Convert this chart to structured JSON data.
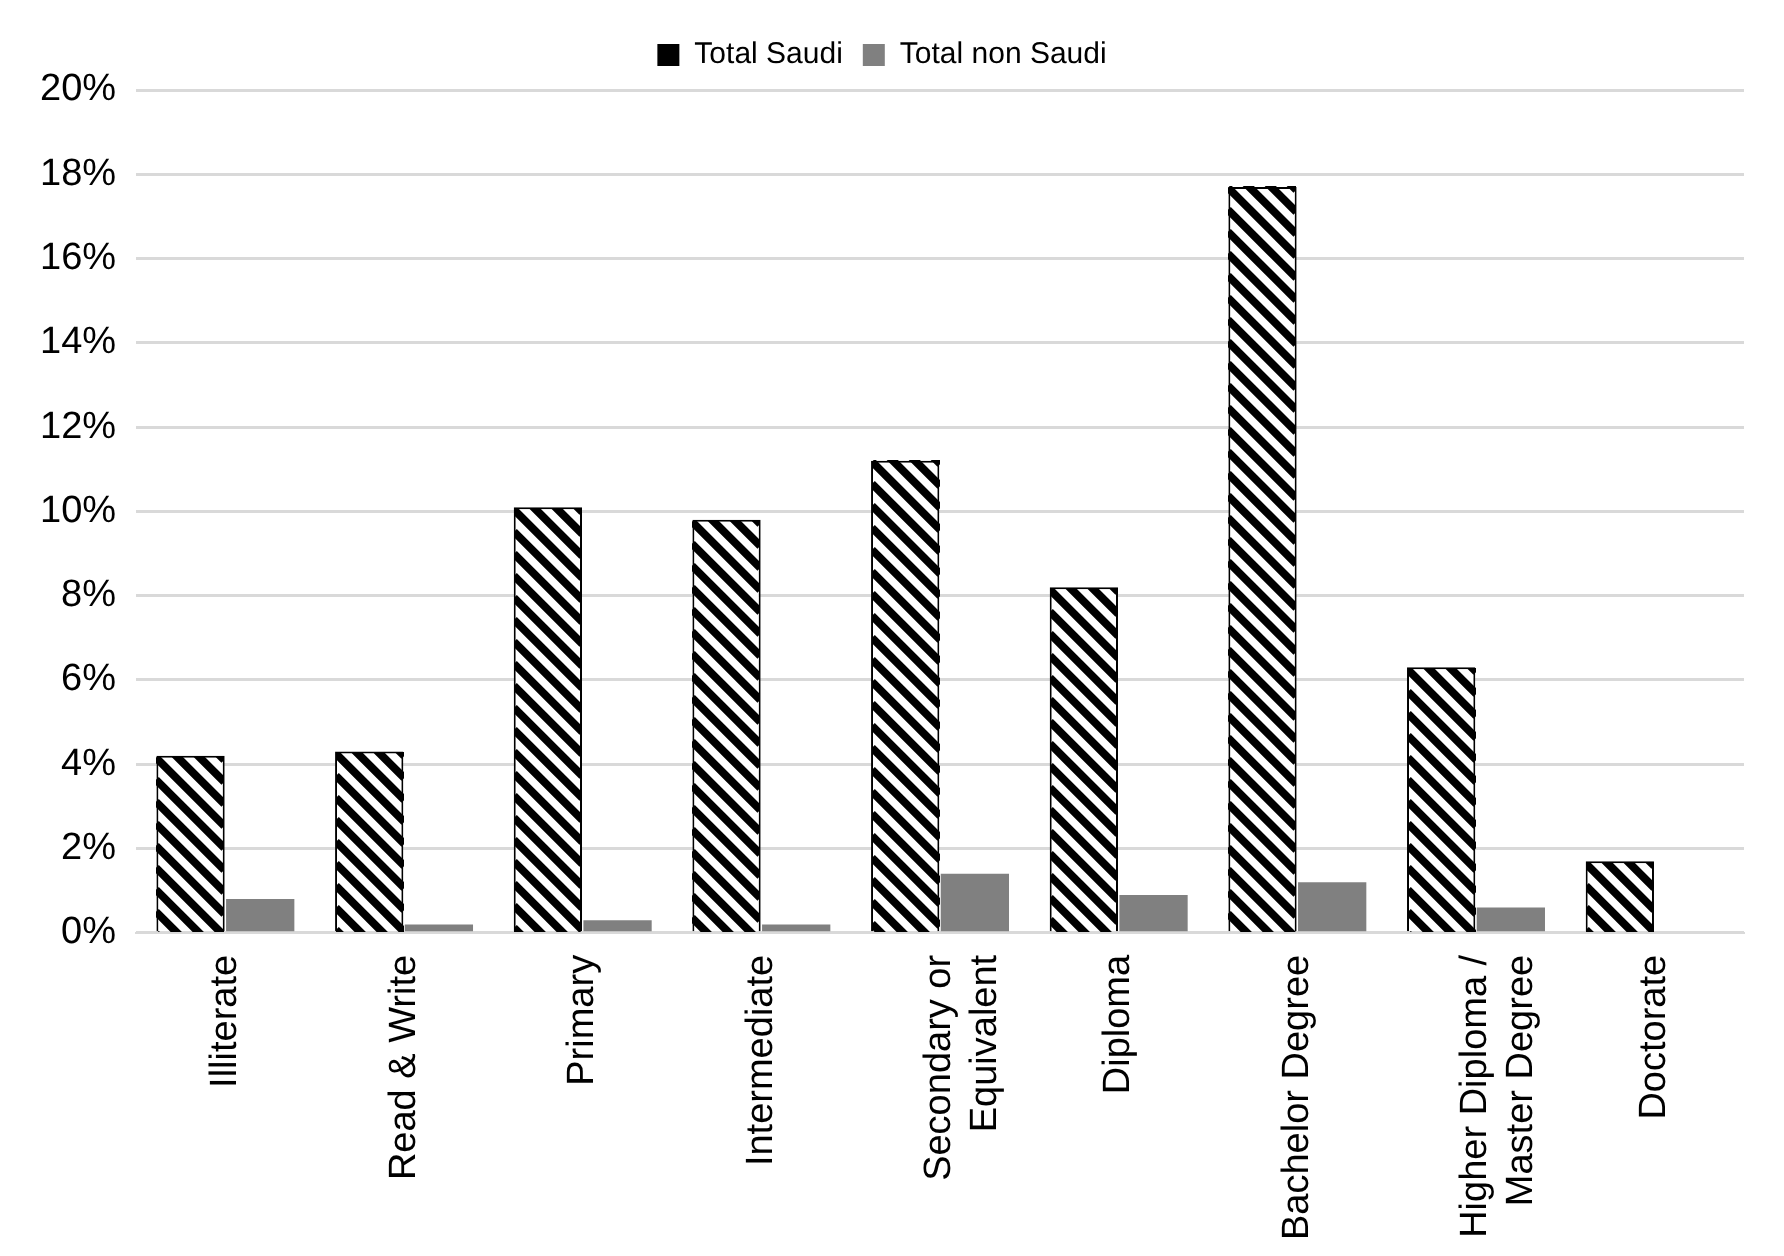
{
  "chart_data": {
    "type": "bar",
    "categories": [
      "Illiterate",
      "Read & Write",
      "Primary",
      "Intermediate",
      "Secondary or Equivalent",
      "Diploma",
      "Bachelor Degree",
      "Higher Diploma / Master Degree",
      "Doctorate"
    ],
    "series": [
      {
        "name": "Total Saudi",
        "color": "#000000",
        "values": [
          4.2,
          4.3,
          10.1,
          9.8,
          11.2,
          8.2,
          17.7,
          6.3,
          1.7
        ]
      },
      {
        "name": "Total non Saudi",
        "color": "#808080",
        "values": [
          0.8,
          0.2,
          0.3,
          0.2,
          1.4,
          0.9,
          1.2,
          0.6,
          0
        ]
      }
    ],
    "ylim": [
      0,
      20
    ],
    "yticks": [
      {
        "value": 0,
        "label": "0%"
      },
      {
        "value": 2,
        "label": "2%"
      },
      {
        "value": 4,
        "label": "4%"
      },
      {
        "value": 6,
        "label": "6%"
      },
      {
        "value": 8,
        "label": "8%"
      },
      {
        "value": 10,
        "label": "10%"
      },
      {
        "value": 12,
        "label": "12%"
      },
      {
        "value": 14,
        "label": "14%"
      },
      {
        "value": 16,
        "label": "16%"
      },
      {
        "value": 18,
        "label": "18%"
      },
      {
        "value": 20,
        "label": "20%"
      }
    ],
    "grid": "y",
    "legend": "top"
  }
}
